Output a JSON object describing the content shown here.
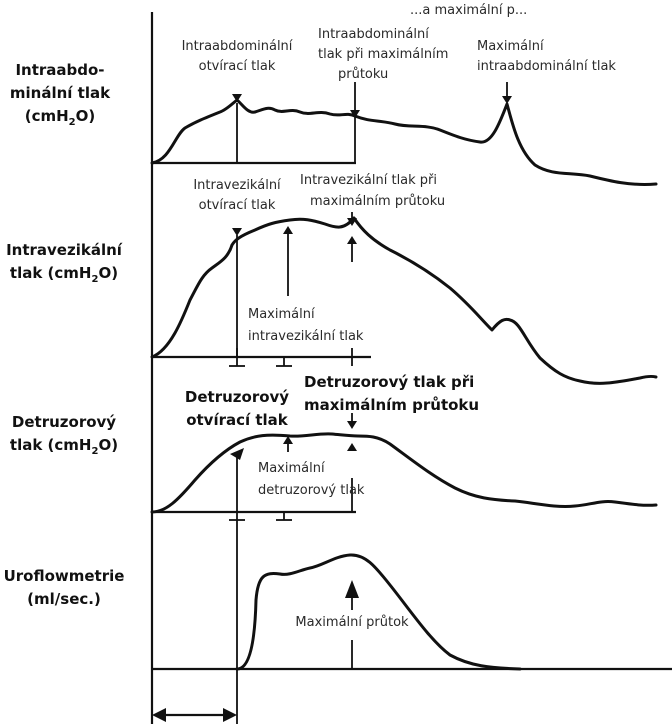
{
  "top_fragment": "...a maximální p...",
  "rows": [
    {
      "key": "abd",
      "label": [
        "Intraabdo-",
        "minální tlak",
        "(cmH2O)"
      ]
    },
    {
      "key": "ves",
      "label": [
        "Intravezikální",
        "tlak (cmH2O)"
      ]
    },
    {
      "key": "det",
      "label": [
        "Detruzorový",
        "tlak (cmH2O)"
      ]
    },
    {
      "key": "flow",
      "label": [
        "Uroflowmetrie",
        "(ml/sec.)"
      ]
    }
  ],
  "annotations": {
    "abd_opening": [
      "Intraabdominální",
      "otvírací tlak"
    ],
    "abd_at_max_flow": [
      "Intraabdominální",
      "tlak při maximálním",
      "průtoku"
    ],
    "abd_max": [
      "Maximální",
      "intraabdominální tlak"
    ],
    "ves_opening": [
      "Intravezikální",
      "otvírací tlak"
    ],
    "ves_at_max_flow": [
      "Intravezikální tlak při",
      "maximálním průtoku"
    ],
    "ves_max": [
      "Maximální",
      "intravezikální tlak"
    ],
    "det_opening": [
      "Detruzorový",
      "otvírací tlak"
    ],
    "det_at_max_flow": [
      "Detruzorový tlak při",
      "maximálním průtoku"
    ],
    "det_max": [
      "Maximální",
      "detruzorový tlak"
    ],
    "flow_max": [
      "Maximální průtok"
    ]
  },
  "units": {
    "sub": "2"
  }
}
